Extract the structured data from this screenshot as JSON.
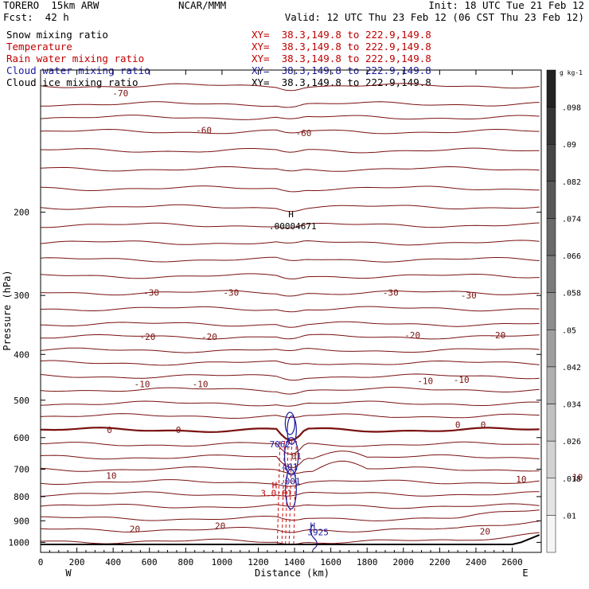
{
  "header": {
    "model": "TORERO  15km ARW",
    "center": "NCAR/MMM",
    "init": "Init: 18 UTC Tue 21 Feb 12",
    "fcst": "Fcst:  42 h",
    "valid": "Valid: 12 UTC Thu 23 Feb 12 (06 CST Thu 23 Feb 12)"
  },
  "fields": [
    {
      "name": "Snow mixing ratio",
      "xy": "XY=  38.3,149.8 to 222.9,149.8",
      "color": "#000000"
    },
    {
      "name": "Temperature",
      "xy": "XY=  38.3,149.8 to 222.9,149.8",
      "color": "#c00000"
    },
    {
      "name": "Rain water mixing ratio",
      "xy": "XY=  38.3,149.8 to 222.9,149.8",
      "color": "#c00000"
    },
    {
      "name": "Cloud water mixing ratio",
      "xy": "XY=  38.3,149.8 to 222.9,149.8",
      "color": "#1a1aa0"
    },
    {
      "name": "Cloud ice mixing ratio",
      "xy": "XY=  38.3,149.8 to 222.9,149.8",
      "color": "#000000"
    }
  ],
  "chart_data": {
    "type": "line",
    "xlabel": "Distance (km)",
    "ylabel": "Pressure (hPa)",
    "xlim": [
      0,
      2760
    ],
    "ylim": [
      1050,
      100
    ],
    "y_scale": "log",
    "x_ticks": [
      "0",
      "200",
      "400",
      "600",
      "800",
      "1000",
      "1200",
      "1400",
      "1600",
      "1800",
      "2000",
      "2200",
      "2400",
      "2600"
    ],
    "y_ticks": [
      "200",
      "300",
      "400",
      "500",
      "600",
      "700",
      "800",
      "900",
      "1000"
    ],
    "x_end_labels": {
      "left": "W",
      "right": "E"
    },
    "temperature_contours": {
      "color": "#7a1010",
      "labels": [
        {
          "text": "-70",
          "x": 440,
          "p": 112
        },
        {
          "text": "-60",
          "x": 900,
          "p": 134
        },
        {
          "text": "-60",
          "x": 1450,
          "p": 136
        },
        {
          "text": "-30",
          "x": 610,
          "p": 296
        },
        {
          "text": "-30",
          "x": 1050,
          "p": 296
        },
        {
          "text": "-30",
          "x": 1930,
          "p": 296
        },
        {
          "text": "-30",
          "x": 2360,
          "p": 300
        },
        {
          "text": "-20",
          "x": 590,
          "p": 367
        },
        {
          "text": "-20",
          "x": 930,
          "p": 367
        },
        {
          "text": "-20",
          "x": 2050,
          "p": 364
        },
        {
          "text": "-20",
          "x": 2520,
          "p": 364
        },
        {
          "text": "-10",
          "x": 560,
          "p": 462
        },
        {
          "text": "-10",
          "x": 880,
          "p": 462
        },
        {
          "text": "-10",
          "x": 2120,
          "p": 455
        },
        {
          "text": "-10",
          "x": 2320,
          "p": 452
        },
        {
          "text": "0",
          "x": 380,
          "p": 578
        },
        {
          "text": "0",
          "x": 760,
          "p": 578
        },
        {
          "text": "0",
          "x": 2300,
          "p": 563
        },
        {
          "text": "0",
          "x": 2440,
          "p": 563
        },
        {
          "text": "10",
          "x": 390,
          "p": 722
        },
        {
          "text": "10",
          "x": 2650,
          "p": 735
        },
        {
          "text": "10",
          "x": 2960,
          "p": 727
        },
        {
          "text": "20",
          "x": 520,
          "p": 937
        },
        {
          "text": "20",
          "x": 990,
          "p": 922
        },
        {
          "text": "20",
          "x": 2450,
          "p": 947
        },
        {
          "text": "01",
          "x": 1410,
          "p": 657
        }
      ]
    },
    "cloud_labels": [
      {
        "text": "H",
        "x": 1380,
        "p": 202,
        "color": "#000000"
      },
      {
        "text": ".00004671",
        "x": 1390,
        "p": 214,
        "color": "#000000"
      },
      {
        "text": "7062",
        "x": 1320,
        "p": 620,
        "color": "#1a1aa0"
      },
      {
        "text": "401",
        "x": 1375,
        "p": 692,
        "color": "#1a1aa0"
      },
      {
        "text": ".001",
        "x": 1375,
        "p": 742,
        "color": "#1a1aa0"
      },
      {
        "text": "H",
        "x": 1290,
        "p": 757,
        "color": "#c00000"
      },
      {
        "text": "3.0:01",
        "x": 1300,
        "p": 787,
        "color": "#c00000"
      },
      {
        "text": "H",
        "x": 1500,
        "p": 922,
        "color": "#1a1aa0"
      },
      {
        "text": "3925",
        "x": 1530,
        "p": 952,
        "color": "#1a1aa0"
      }
    ],
    "colorbar": {
      "unit": "g kg-1",
      "labels": [
        ".098",
        ".09",
        ".082",
        ".074",
        ".066",
        ".058",
        ".05",
        ".042",
        ".034",
        ".026",
        ".018",
        ".01"
      ]
    }
  }
}
